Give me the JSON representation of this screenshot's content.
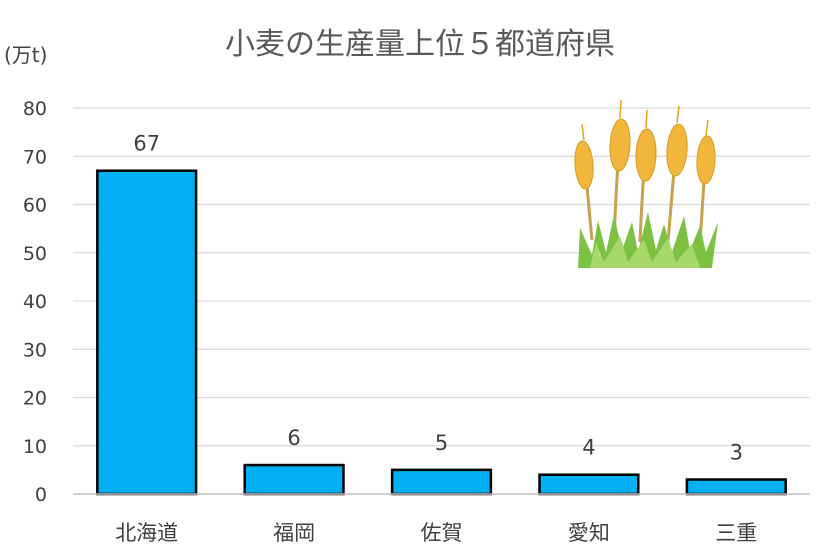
{
  "chart_data": {
    "type": "bar",
    "title": "小麦の生産量上位５都道府県",
    "ylabel": "(万t)",
    "xlabel": "",
    "categories": [
      "北海道",
      "福岡",
      "佐賀",
      "愛知",
      "三重"
    ],
    "values": [
      67,
      6,
      5,
      4,
      3
    ],
    "data_labels": [
      "67",
      "6",
      "5",
      "4",
      "3"
    ],
    "ylim": [
      0,
      80
    ],
    "yticks": [
      0,
      10,
      20,
      30,
      40,
      50,
      60,
      70,
      80
    ],
    "ytick_labels": [
      "0",
      "10",
      "20",
      "30",
      "40",
      "50",
      "60",
      "70",
      "80"
    ],
    "grid": true,
    "legend": "none",
    "bar_color": "#00B0F0",
    "bar_edge_color": "#000000",
    "grid_color": "#D9D9D9",
    "decoration": "wheat-illustration"
  }
}
